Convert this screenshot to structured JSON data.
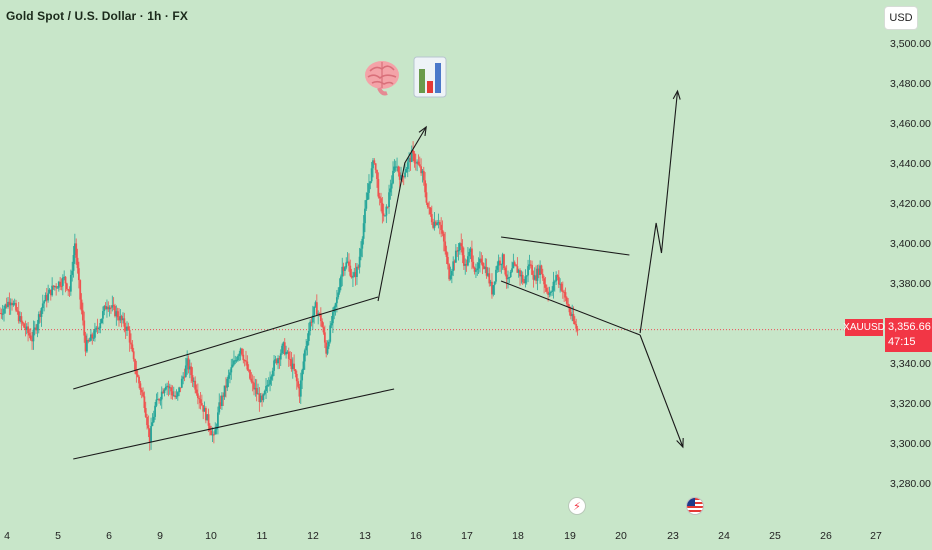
{
  "header": {
    "title": "Gold Spot / U.S. Dollar · 1h · FX"
  },
  "currency_button": {
    "label": "USD"
  },
  "price_axis": {
    "ticks": [
      "3,500.00",
      "3,480.00",
      "3,460.00",
      "3,440.00",
      "3,420.00",
      "3,400.00",
      "3,380.00",
      "3,360.00",
      "3,340.00",
      "3,320.00",
      "3,300.00",
      "3,280.00"
    ]
  },
  "time_axis": {
    "ticks": [
      "4",
      "5",
      "6",
      "9",
      "10",
      "11",
      "12",
      "13",
      "16",
      "17",
      "18",
      "19",
      "20",
      "23",
      "24",
      "25",
      "26",
      "27"
    ]
  },
  "last_price": {
    "symbol": "XAUUSD",
    "price": "3,356.66",
    "countdown": "47:15"
  },
  "colors": {
    "background": "#c8e6c9",
    "up": "#26a69a",
    "down": "#ef5350",
    "price_line": "#f23645",
    "drawing": "#1a1a1a"
  },
  "events": [
    {
      "icon": "lightning-icon"
    },
    {
      "icon": "us-flag-icon"
    }
  ],
  "emojis": [
    {
      "icon": "brain-icon"
    },
    {
      "icon": "bar-chart-icon"
    }
  ],
  "chart_data": {
    "type": "candlestick",
    "title": "Gold Spot / U.S. Dollar · 1h · FX",
    "y_axis": {
      "side": "right",
      "range": [
        3275,
        3510
      ],
      "ticks": [
        3280,
        3300,
        3320,
        3340,
        3360,
        3380,
        3400,
        3420,
        3440,
        3460,
        3480,
        3500
      ]
    },
    "x_axis": {
      "labels": [
        "4",
        "5",
        "6",
        "9",
        "10",
        "11",
        "12",
        "13",
        "16",
        "17",
        "18",
        "19",
        "20",
        "23",
        "24",
        "25",
        "26",
        "27"
      ]
    },
    "last_price": 3356.66,
    "grid": false,
    "price_path": [
      [
        0,
        3365
      ],
      [
        2,
        3372
      ],
      [
        4,
        3360
      ],
      [
        6,
        3352
      ],
      [
        8,
        3370
      ],
      [
        10,
        3378
      ],
      [
        12,
        3382
      ],
      [
        13,
        3376
      ],
      [
        14,
        3400
      ],
      [
        15,
        3372
      ],
      [
        16,
        3348
      ],
      [
        18,
        3356
      ],
      [
        20,
        3370
      ],
      [
        22,
        3364
      ],
      [
        24,
        3356
      ],
      [
        25,
        3340
      ],
      [
        26,
        3330
      ],
      [
        27,
        3320
      ],
      [
        28,
        3302
      ],
      [
        29,
        3318
      ],
      [
        31,
        3330
      ],
      [
        33,
        3322
      ],
      [
        35,
        3340
      ],
      [
        37,
        3325
      ],
      [
        39,
        3310
      ],
      [
        40,
        3302
      ],
      [
        41,
        3318
      ],
      [
        43,
        3335
      ],
      [
        45,
        3348
      ],
      [
        47,
        3330
      ],
      [
        49,
        3320
      ],
      [
        51,
        3338
      ],
      [
        53,
        3348
      ],
      [
        55,
        3336
      ],
      [
        56,
        3325
      ],
      [
        57,
        3346
      ],
      [
        58,
        3360
      ],
      [
        59,
        3368
      ],
      [
        60,
        3362
      ],
      [
        61,
        3346
      ],
      [
        62,
        3360
      ],
      [
        63,
        3372
      ],
      [
        64,
        3388
      ],
      [
        65,
        3390
      ],
      [
        66,
        3382
      ],
      [
        67,
        3388
      ],
      [
        68,
        3410
      ],
      [
        69,
        3430
      ],
      [
        70,
        3442
      ],
      [
        71,
        3420
      ],
      [
        72,
        3412
      ],
      [
        73,
        3428
      ],
      [
        74,
        3440
      ],
      [
        75,
        3432
      ],
      [
        76,
        3438
      ],
      [
        77,
        3444
      ],
      [
        78,
        3440
      ],
      [
        79,
        3434
      ],
      [
        80,
        3418
      ],
      [
        81,
        3410
      ],
      [
        82,
        3412
      ],
      [
        83,
        3400
      ],
      [
        84,
        3384
      ],
      [
        85,
        3392
      ],
      [
        86,
        3400
      ],
      [
        87,
        3388
      ],
      [
        88,
        3396
      ],
      [
        89,
        3384
      ],
      [
        90,
        3392
      ],
      [
        91,
        3386
      ],
      [
        92,
        3376
      ],
      [
        93,
        3390
      ],
      [
        94,
        3392
      ],
      [
        95,
        3380
      ],
      [
        96,
        3388
      ],
      [
        97,
        3386
      ],
      [
        98,
        3380
      ],
      [
        99,
        3390
      ],
      [
        100,
        3382
      ],
      [
        101,
        3388
      ],
      [
        102,
        3378
      ],
      [
        103,
        3374
      ],
      [
        104,
        3384
      ],
      [
        105,
        3378
      ],
      [
        106,
        3370
      ],
      [
        107,
        3362
      ],
      [
        108,
        3356
      ]
    ],
    "annotations": {
      "rising_channel": {
        "upper": [
          [
            4,
            3327
          ],
          [
            61,
            3373
          ]
        ],
        "lower": [
          [
            4,
            3292
          ],
          [
            64,
            3327
          ]
        ]
      },
      "breakout_arrow": [
        [
          61,
          3371
        ],
        [
          66,
          3440
        ],
        [
          70,
          3458
        ]
      ],
      "falling_wedge": {
        "upper": [
          [
            84,
            3403
          ],
          [
            108,
            3394
          ]
        ],
        "lower": [
          [
            84,
            3381
          ],
          [
            110,
            3354
          ]
        ]
      },
      "bullish_projection": [
        [
          110,
          3355
        ],
        [
          113,
          3410
        ],
        [
          114,
          3395
        ],
        [
          117,
          3476
        ]
      ],
      "bearish_projection": [
        [
          110,
          3354
        ],
        [
          112,
          3340
        ],
        [
          118,
          3298
        ]
      ]
    }
  }
}
